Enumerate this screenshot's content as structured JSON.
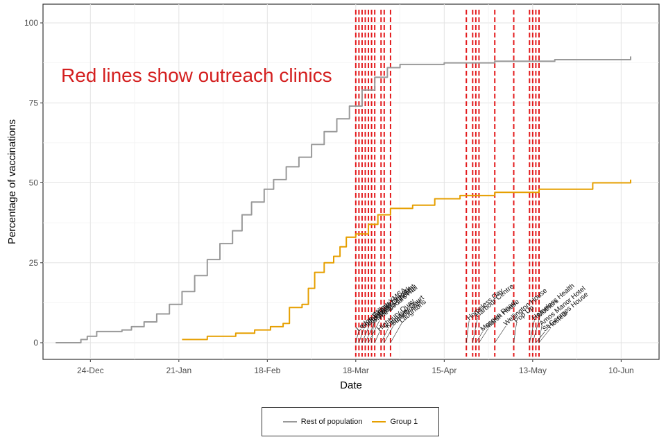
{
  "chart_data": {
    "type": "line",
    "xlabel": "Date",
    "ylabel": "Percentage of vaccinations",
    "ylim": [
      0,
      100
    ],
    "yticks": [
      0,
      25,
      50,
      75,
      100
    ],
    "xlim": [
      "2020-12-09",
      "2021-06-22"
    ],
    "xticks": [
      {
        "date": "2020-12-24",
        "label": "24-Dec"
      },
      {
        "date": "2021-01-21",
        "label": "21-Jan"
      },
      {
        "date": "2021-02-18",
        "label": "18-Feb"
      },
      {
        "date": "2021-03-18",
        "label": "18-Mar"
      },
      {
        "date": "2021-04-15",
        "label": "15-Apr"
      },
      {
        "date": "2021-05-13",
        "label": "13-May"
      },
      {
        "date": "2021-06-10",
        "label": "10-Jun"
      }
    ],
    "grid": true,
    "legend_position": "bottom",
    "series": [
      {
        "name": "Rest of population",
        "color": "#999999",
        "points": [
          [
            "2020-12-13",
            0
          ],
          [
            "2020-12-19",
            0
          ],
          [
            "2020-12-21",
            1
          ],
          [
            "2020-12-23",
            2
          ],
          [
            "2020-12-26",
            3.5
          ],
          [
            "2021-01-03",
            4
          ],
          [
            "2021-01-06",
            5
          ],
          [
            "2021-01-10",
            6.5
          ],
          [
            "2021-01-14",
            9
          ],
          [
            "2021-01-18",
            12
          ],
          [
            "2021-01-22",
            16
          ],
          [
            "2021-01-26",
            21
          ],
          [
            "2021-01-30",
            26
          ],
          [
            "2021-02-03",
            31
          ],
          [
            "2021-02-07",
            35
          ],
          [
            "2021-02-10",
            40
          ],
          [
            "2021-02-13",
            44
          ],
          [
            "2021-02-17",
            48
          ],
          [
            "2021-02-20",
            51
          ],
          [
            "2021-02-24",
            55
          ],
          [
            "2021-02-28",
            58
          ],
          [
            "2021-03-04",
            62
          ],
          [
            "2021-03-08",
            66
          ],
          [
            "2021-03-12",
            70
          ],
          [
            "2021-03-16",
            74
          ],
          [
            "2021-03-20",
            79
          ],
          [
            "2021-03-24",
            83
          ],
          [
            "2021-03-28",
            86
          ],
          [
            "2021-04-01",
            87
          ],
          [
            "2021-04-15",
            87.5
          ],
          [
            "2021-05-01",
            88
          ],
          [
            "2021-05-20",
            88.5
          ],
          [
            "2021-06-13",
            89.5
          ]
        ]
      },
      {
        "name": "Group 1",
        "color": "#e69f00",
        "points": [
          [
            "2021-01-22",
            1
          ],
          [
            "2021-01-30",
            2
          ],
          [
            "2021-02-08",
            3
          ],
          [
            "2021-02-14",
            4
          ],
          [
            "2021-02-19",
            5
          ],
          [
            "2021-02-23",
            6
          ],
          [
            "2021-02-25",
            11
          ],
          [
            "2021-03-01",
            12
          ],
          [
            "2021-03-03",
            17
          ],
          [
            "2021-03-05",
            22
          ],
          [
            "2021-03-08",
            25
          ],
          [
            "2021-03-11",
            27
          ],
          [
            "2021-03-13",
            30
          ],
          [
            "2021-03-15",
            33
          ],
          [
            "2021-03-18",
            34
          ],
          [
            "2021-03-22",
            37
          ],
          [
            "2021-03-25",
            40
          ],
          [
            "2021-03-29",
            42
          ],
          [
            "2021-04-05",
            43
          ],
          [
            "2021-04-12",
            45
          ],
          [
            "2021-04-20",
            46
          ],
          [
            "2021-05-01",
            47
          ],
          [
            "2021-05-15",
            48
          ],
          [
            "2021-06-01",
            50
          ],
          [
            "2021-06-13",
            51
          ]
        ]
      }
    ],
    "annotation": "Red lines show outreach clinics",
    "clinic_line_color": "#e31a1c",
    "clinics": [
      {
        "date": "2021-03-18",
        "label": "Lodge Guests"
      },
      {
        "date": "2021-03-19",
        "label": "Lodge Queens Park"
      },
      {
        "date": "2021-03-20",
        "label": "Loughrigg Crescent"
      },
      {
        "date": "2021-03-21",
        "label": "St Mary's Church"
      },
      {
        "date": "2021-03-22",
        "label": "The Cedars Hall"
      },
      {
        "date": "2021-03-23",
        "label": "Willow YMCA"
      },
      {
        "date": "2021-03-24",
        "label": "Highbury Quay"
      },
      {
        "date": "2021-03-26",
        "label": "Knightley Court"
      },
      {
        "date": "2021-03-27",
        "label": "Broadbridge"
      },
      {
        "date": "2021-03-29",
        "label": "Laughtons"
      },
      {
        "date": "2021-04-22",
        "label": "Homeless Day"
      },
      {
        "date": "2021-04-24",
        "label": "Harbour Centre"
      },
      {
        "date": "2021-04-25",
        "label": "Mosque Road"
      },
      {
        "date": "2021-04-26",
        "label": "Marsh House"
      },
      {
        "date": "2021-05-01",
        "label": "Wellington House"
      },
      {
        "date": "2021-05-07",
        "label": "Pop Up"
      },
      {
        "date": "2021-05-12",
        "label": "Homeless Health"
      },
      {
        "date": "2021-05-13",
        "label": "Mothers"
      },
      {
        "date": "2021-05-14",
        "label": "St Georges House"
      },
      {
        "date": "2021-05-15",
        "label": "Hostels"
      },
      {
        "date": "2021-05-15",
        "label": "Amos Manor Hotel"
      }
    ]
  }
}
